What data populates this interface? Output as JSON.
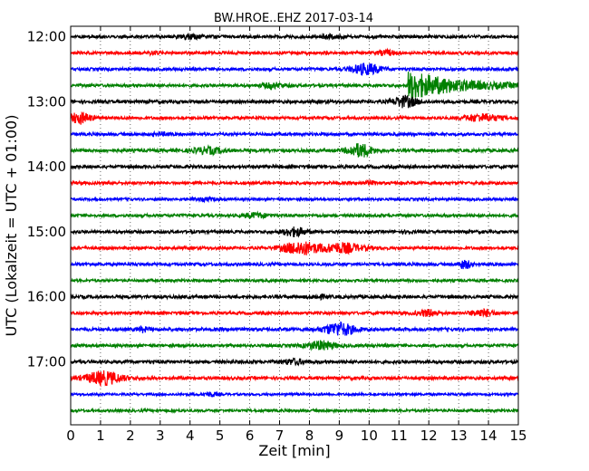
{
  "chart_data": {
    "type": "line",
    "title": "BW.HROE..EHZ 2017-03-14",
    "xlabel": "Zeit  [min]",
    "ylabel": "UTC (Lokalzeit = UTC + 01:00)",
    "xlim": [
      0,
      15
    ],
    "x_ticks": [
      "0",
      "1",
      "2",
      "3",
      "4",
      "5",
      "6",
      "7",
      "8",
      "9",
      "10",
      "11",
      "12",
      "13",
      "14",
      "15"
    ],
    "y_ticks": [
      {
        "label": "12:00",
        "trace": 0
      },
      {
        "label": "13:00",
        "trace": 4
      },
      {
        "label": "14:00",
        "trace": 8
      },
      {
        "label": "15:00",
        "trace": 12
      },
      {
        "label": "16:00",
        "trace": 16
      },
      {
        "label": "17:00",
        "trace": 20
      }
    ],
    "grid": "vertical-dotted",
    "trace_minutes": 15,
    "trace_colors": [
      "#000000",
      "#ff0000",
      "#0000ff",
      "#008000"
    ],
    "traces": [
      {
        "start": "12:00",
        "color": "#000000",
        "noise": 0.5,
        "events": [
          [
            4.0,
            0.8,
            0.4
          ],
          [
            8.7,
            0.6,
            0.3
          ]
        ]
      },
      {
        "start": "12:15",
        "color": "#ff0000",
        "noise": 0.5,
        "events": [
          [
            2.8,
            0.5,
            0.2
          ],
          [
            10.6,
            0.8,
            0.3
          ]
        ]
      },
      {
        "start": "12:30",
        "color": "#0000ff",
        "noise": 0.5,
        "events": [
          [
            9.9,
            1.8,
            0.5
          ]
        ]
      },
      {
        "start": "12:45",
        "color": "#008000",
        "noise": 0.5,
        "events": [
          [
            6.8,
            0.8,
            0.4
          ],
          [
            11.3,
            5.0,
            1.6
          ]
        ]
      },
      {
        "start": "13:00",
        "color": "#000000",
        "noise": 0.55,
        "events": [
          [
            11.2,
            1.8,
            0.4
          ]
        ]
      },
      {
        "start": "13:15",
        "color": "#ff0000",
        "noise": 0.5,
        "events": [
          [
            0.3,
            1.8,
            0.4
          ],
          [
            13.8,
            1.2,
            0.6
          ]
        ]
      },
      {
        "start": "13:30",
        "color": "#0000ff",
        "noise": 0.5,
        "events": [
          [
            3.0,
            0.4,
            0.3
          ]
        ]
      },
      {
        "start": "13:45",
        "color": "#008000",
        "noise": 0.55,
        "events": [
          [
            4.6,
            1.0,
            0.5
          ],
          [
            9.7,
            2.2,
            0.4
          ]
        ]
      },
      {
        "start": "14:00",
        "color": "#000000",
        "noise": 0.55,
        "events": []
      },
      {
        "start": "14:15",
        "color": "#ff0000",
        "noise": 0.5,
        "events": [
          [
            10.0,
            0.5,
            0.2
          ]
        ]
      },
      {
        "start": "14:30",
        "color": "#0000ff",
        "noise": 0.45,
        "events": [
          [
            4.5,
            0.4,
            0.4
          ]
        ]
      },
      {
        "start": "14:45",
        "color": "#008000",
        "noise": 0.5,
        "events": [
          [
            6.2,
            0.8,
            0.4
          ]
        ]
      },
      {
        "start": "15:00",
        "color": "#000000",
        "noise": 0.5,
        "events": [
          [
            7.5,
            1.4,
            0.4
          ],
          [
            11.3,
            0.6,
            0.1
          ]
        ]
      },
      {
        "start": "15:15",
        "color": "#ff0000",
        "noise": 0.5,
        "events": [
          [
            7.7,
            2.2,
            0.6
          ],
          [
            9.1,
            1.6,
            0.7
          ]
        ]
      },
      {
        "start": "15:30",
        "color": "#0000ff",
        "noise": 0.5,
        "events": [
          [
            13.2,
            1.4,
            0.2
          ]
        ]
      },
      {
        "start": "15:45",
        "color": "#008000",
        "noise": 0.45,
        "events": []
      },
      {
        "start": "16:00",
        "color": "#000000",
        "noise": 0.55,
        "events": [
          [
            8.3,
            0.5,
            0.3
          ]
        ]
      },
      {
        "start": "16:15",
        "color": "#ff0000",
        "noise": 0.5,
        "events": [
          [
            12.0,
            1.0,
            0.4
          ],
          [
            13.8,
            1.1,
            0.4
          ]
        ]
      },
      {
        "start": "16:30",
        "color": "#0000ff",
        "noise": 0.55,
        "events": [
          [
            2.4,
            0.8,
            0.2
          ],
          [
            9.0,
            2.2,
            0.5
          ]
        ]
      },
      {
        "start": "16:45",
        "color": "#008000",
        "noise": 0.5,
        "events": [
          [
            8.4,
            1.4,
            0.5
          ]
        ]
      },
      {
        "start": "17:00",
        "color": "#000000",
        "noise": 0.55,
        "events": [
          [
            7.5,
            0.8,
            0.4
          ]
        ]
      },
      {
        "start": "17:15",
        "color": "#ff0000",
        "noise": 0.55,
        "events": [
          [
            1.1,
            2.2,
            0.6
          ]
        ]
      },
      {
        "start": "17:30",
        "color": "#0000ff",
        "noise": 0.4,
        "events": [
          [
            4.7,
            0.7,
            0.2
          ]
        ]
      },
      {
        "start": "17:45",
        "color": "#008000",
        "noise": 0.45,
        "events": []
      }
    ]
  }
}
